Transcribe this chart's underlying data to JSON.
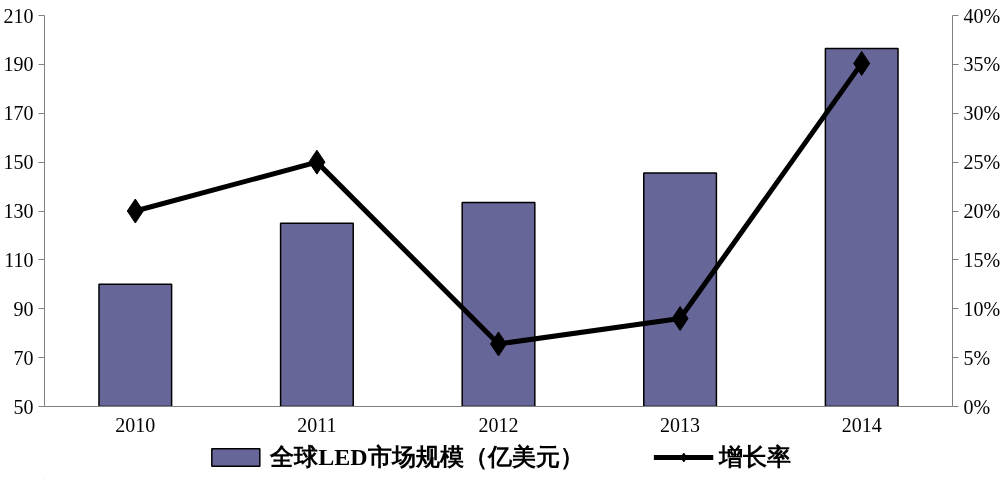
{
  "chart_data": {
    "type": "bar",
    "categories": [
      "2010",
      "2011",
      "2012",
      "2013",
      "2014"
    ],
    "series": [
      {
        "name": "全球LED市场规模（亿美元）",
        "color": "#666699",
        "values": [
          100,
          125,
          133.5,
          145.5,
          196.5
        ]
      },
      {
        "name": "增长率",
        "type": "line",
        "axis": "y2",
        "color": "#000000",
        "values": [
          20,
          25,
          6.4,
          9,
          35.1
        ],
        "marker": "diamond"
      }
    ],
    "ylim": [
      50,
      210
    ],
    "yticks": [
      50,
      70,
      90,
      110,
      130,
      150,
      170,
      190,
      210
    ],
    "y2lim": [
      0,
      40
    ],
    "y2ticks": [
      {
        "value": 0,
        "label": "0%"
      },
      {
        "value": 5,
        "label": "5%"
      },
      {
        "value": 10,
        "label": "10%"
      },
      {
        "value": 15,
        "label": "15%"
      },
      {
        "value": 20,
        "label": "20%"
      },
      {
        "value": 25,
        "label": "25%"
      },
      {
        "value": 30,
        "label": "30%"
      },
      {
        "value": 35,
        "label": "35%"
      },
      {
        "value": 40,
        "label": "40%"
      }
    ],
    "grid": false,
    "legend": "bottom"
  }
}
